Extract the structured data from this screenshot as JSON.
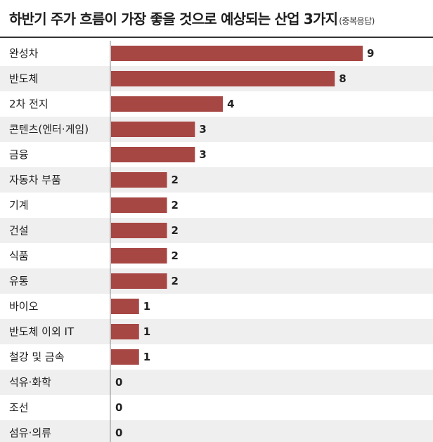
{
  "header": {
    "title": "하반기 주가 흐름이 가장 좋을 것으로 예상되는 산업 3가지",
    "subtitle": "(중복응답)"
  },
  "colors": {
    "bar": "#a74744",
    "stripe": "#efefef",
    "axis": "#888888"
  },
  "chart_data": {
    "type": "bar",
    "orientation": "horizontal",
    "title": "하반기 주가 흐름이 가장 좋을 것으로 예상되는 산업 3가지",
    "subtitle": "(중복응답)",
    "categories": [
      "완성차",
      "반도체",
      "2차 전지",
      "콘텐츠(엔터·게임)",
      "금융",
      "자동차 부품",
      "기계",
      "건설",
      "식품",
      "유통",
      "바이오",
      "반도체 이외 IT",
      "철강 및 금속",
      "석유·화학",
      "조선",
      "섬유·의류"
    ],
    "values": [
      9,
      8,
      4,
      3,
      3,
      2,
      2,
      2,
      2,
      2,
      1,
      1,
      1,
      0,
      0,
      0
    ],
    "xlim": [
      0,
      9
    ],
    "grid": false,
    "legend": "none"
  }
}
